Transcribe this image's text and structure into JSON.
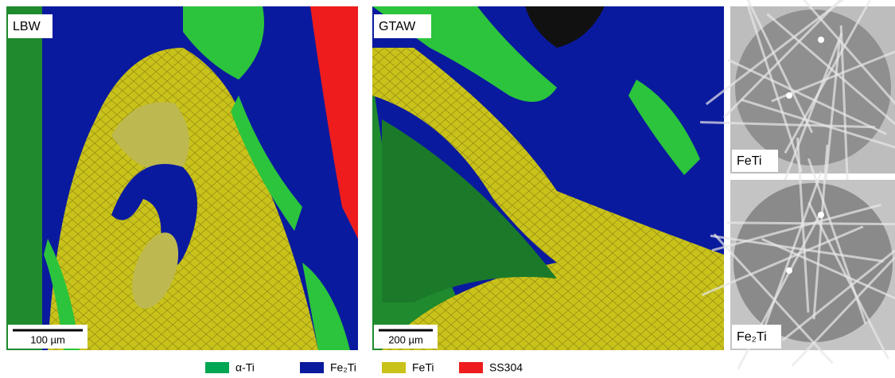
{
  "panels": [
    {
      "label": "LBW",
      "scale_bar": "100 µm"
    },
    {
      "label": "GTAW",
      "scale_bar": "200 µm"
    }
  ],
  "patterns": [
    {
      "label": "FeTi"
    },
    {
      "label": "Fe₂Ti"
    }
  ],
  "legend": [
    {
      "label": "α-Ti",
      "color": "#00a651"
    },
    {
      "label": "Fe₂Ti",
      "color": "#0a1a9e"
    },
    {
      "label": "FeTi",
      "color": "#c9c21a"
    },
    {
      "label": "SS304",
      "color": "#ee1c1c"
    }
  ]
}
